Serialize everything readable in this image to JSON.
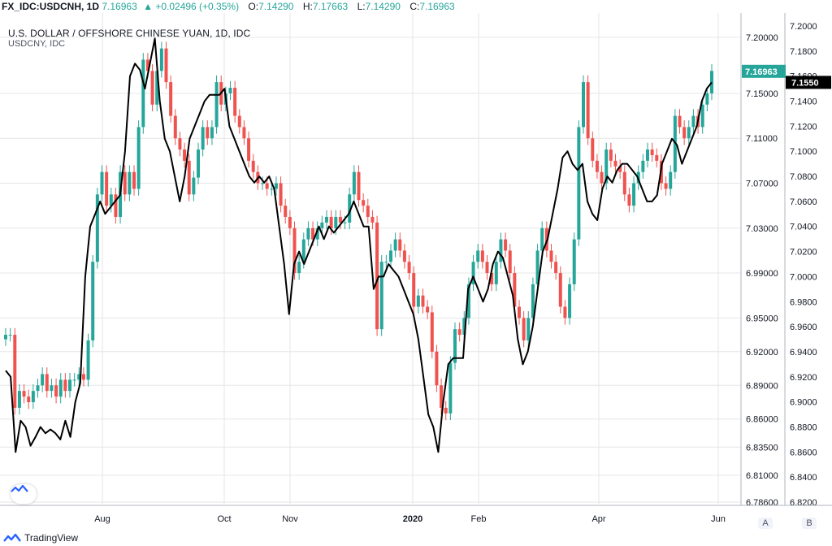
{
  "header": {
    "symbol": "FX_IDC:USDCNH, 1D",
    "last": "7.16963",
    "change_icon": "triangle-up-icon",
    "change": "+0.02496 (+0.35%)",
    "open_label": "O:",
    "open": "7.14290",
    "high_label": "H:",
    "high": "7.17663",
    "low_label": "L:",
    "low": "7.14290",
    "close_label": "C:",
    "close": "7.16963"
  },
  "legend": {
    "title": "U.S. DOLLAR / OFFSHORE CHINESE YUAN, 1D, IDC",
    "subtitle": "USDCNY, IDC"
  },
  "price_tags": {
    "primary": "7.16963",
    "secondary": "7.1550"
  },
  "buttons": {
    "a_label": "A",
    "b_label": "B"
  },
  "brand": {
    "name": "TradingView"
  },
  "colors": {
    "up": "#26a69a",
    "down": "#ef5350",
    "line": "#000000",
    "grid": "#e6e6e6"
  },
  "chart_data": {
    "type": "line",
    "x_ticks": [
      "Aug",
      "Oct",
      "Nov",
      "2020",
      "Feb",
      "Apr",
      "Jun"
    ],
    "left_axis_ticks": [
      "7.20000",
      "7.15000",
      "7.11000",
      "7.07000",
      "7.03000",
      "6.99000",
      "6.95000",
      "6.92000",
      "6.89000",
      "6.86000",
      "6.83500",
      "6.81000",
      "6.78600"
    ],
    "right_axis_ticks": [
      "7.2000",
      "7.1800",
      "7.1600",
      "7.1400",
      "7.1200",
      "7.1000",
      "7.0800",
      "7.0600",
      "7.0400",
      "7.0200",
      "7.0000",
      "6.9800",
      "6.9600",
      "6.9400",
      "6.9200",
      "6.9000",
      "6.8800",
      "6.8600",
      "6.8400",
      "6.8200"
    ],
    "series": [
      {
        "name": "USDCNH",
        "style": "candlestick",
        "axis": "left",
        "close": [
          6.935,
          6.935,
          6.87,
          6.885,
          6.88,
          6.875,
          6.885,
          6.89,
          6.9,
          6.885,
          6.89,
          6.88,
          6.895,
          6.885,
          6.895,
          6.895,
          6.9,
          6.895,
          6.93,
          7.0,
          7.06,
          7.08,
          7.05,
          7.06,
          7.04,
          7.08,
          7.06,
          7.08,
          7.065,
          7.12,
          7.18,
          7.17,
          7.14,
          7.17,
          7.19,
          7.16,
          7.13,
          7.11,
          7.1,
          7.09,
          7.06,
          7.075,
          7.1,
          7.12,
          7.11,
          7.12,
          7.16,
          7.14,
          7.15,
          7.155,
          7.13,
          7.12,
          7.11,
          7.09,
          7.08,
          7.07,
          7.07,
          7.065,
          7.065,
          7.07,
          7.05,
          7.04,
          7.03,
          6.99,
          7.0,
          7.02,
          7.03,
          7.02,
          7.03,
          7.035,
          7.04,
          7.03,
          7.04,
          7.035,
          7.035,
          7.06,
          7.08,
          7.055,
          7.05,
          7.04,
          7.035,
          6.94,
          7.0,
          7.0,
          7.01,
          7.02,
          7.01,
          7.0,
          6.99,
          6.96,
          6.97,
          6.96,
          6.955,
          6.92,
          6.89,
          6.87,
          6.865,
          6.91,
          6.94,
          6.935,
          6.95,
          6.98,
          7.0,
          7.01,
          7.0,
          6.99,
          6.98,
          7.0,
          7.02,
          7.01,
          6.99,
          6.96,
          6.95,
          6.93,
          6.95,
          6.98,
          7.01,
          7.03,
          7.01,
          7.0,
          6.99,
          6.96,
          6.95,
          6.98,
          7.02,
          7.12,
          7.16,
          7.11,
          7.09,
          7.08,
          7.07,
          7.1,
          7.09,
          7.085,
          7.08,
          7.06,
          7.05,
          7.07,
          7.08,
          7.09,
          7.1,
          7.095,
          7.09,
          7.07,
          7.065,
          7.08,
          7.13,
          7.12,
          7.11,
          7.12,
          7.13,
          7.12,
          7.14,
          7.15,
          7.17
        ]
      },
      {
        "name": "USDCNY",
        "style": "line",
        "axis": "right",
        "values": [
          6.925,
          6.92,
          6.86,
          6.885,
          6.88,
          6.865,
          6.872,
          6.88,
          6.875,
          6.878,
          6.875,
          6.87,
          6.885,
          6.872,
          6.9,
          6.915,
          7.0,
          7.04,
          7.05,
          7.06,
          7.05,
          7.055,
          7.06,
          7.065,
          7.1,
          7.16,
          7.17,
          7.165,
          7.15,
          7.17,
          7.19,
          7.14,
          7.11,
          7.1,
          7.08,
          7.06,
          7.08,
          7.11,
          7.12,
          7.13,
          7.14,
          7.145,
          7.145,
          7.145,
          7.15,
          7.12,
          7.11,
          7.1,
          7.09,
          7.08,
          7.075,
          7.08,
          7.075,
          7.08,
          7.07,
          7.04,
          7.01,
          6.97,
          7.01,
          7.02,
          7.01,
          7.02,
          7.03,
          7.04,
          7.03,
          7.04,
          7.035,
          7.04,
          7.045,
          7.05,
          7.06,
          7.05,
          7.04,
          7.04,
          6.99,
          7.0,
          7.0,
          7.01,
          7.005,
          7.0,
          6.99,
          6.98,
          6.97,
          6.95,
          6.92,
          6.89,
          6.88,
          6.86,
          6.9,
          6.93,
          6.935,
          6.935,
          6.935,
          6.99,
          7.0,
          6.99,
          6.98,
          6.99,
          7.01,
          7.02,
          7.015,
          7.0,
          6.985,
          6.95,
          6.93,
          6.94,
          6.96,
          6.99,
          7.02,
          7.03,
          7.05,
          7.07,
          7.095,
          7.1,
          7.09,
          7.085,
          7.09,
          7.06,
          7.05,
          7.045,
          7.07,
          7.08,
          7.075,
          7.085,
          7.09,
          7.09,
          7.085,
          7.08,
          7.07,
          7.06,
          7.06,
          7.065,
          7.09,
          7.1,
          7.11,
          7.105,
          7.09,
          7.1,
          7.11,
          7.12,
          7.14,
          7.15,
          7.155
        ]
      }
    ],
    "left_axis_range": [
      6.786,
      7.21
    ],
    "right_axis_range": [
      6.82,
      7.2
    ],
    "grid": true
  }
}
